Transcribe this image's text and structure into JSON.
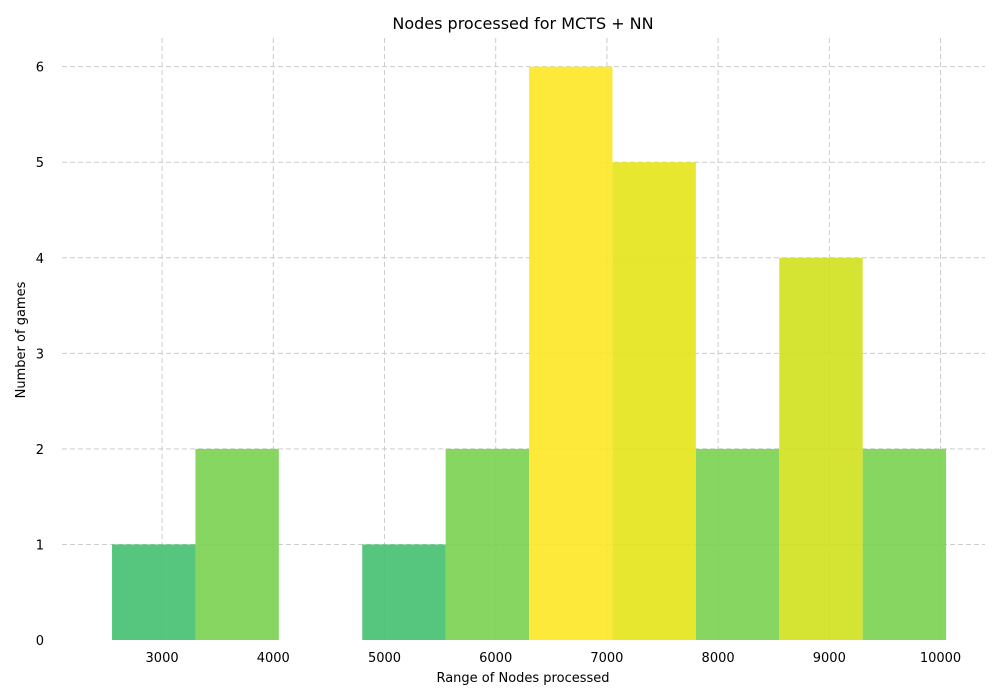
{
  "chart_data": {
    "type": "bar",
    "title": "Nodes processed for MCTS + NN",
    "xlabel": "Range of Nodes processed",
    "ylabel": "Number of games",
    "xlim": [
      2100,
      10400
    ],
    "ylim": [
      0,
      6.3
    ],
    "xticks": [
      3000,
      4000,
      5000,
      6000,
      7000,
      8000,
      9000,
      10000
    ],
    "yticks": [
      0,
      1,
      2,
      3,
      4,
      5,
      6
    ],
    "grid": true,
    "bins": [
      {
        "start": 2550,
        "end": 3300,
        "count": 1,
        "color": "#44bf70"
      },
      {
        "start": 3300,
        "end": 4050,
        "count": 2,
        "color": "#7ad151"
      },
      {
        "start": 4050,
        "end": 4800,
        "count": 0,
        "color": "#2a788e"
      },
      {
        "start": 4800,
        "end": 5550,
        "count": 1,
        "color": "#44bf70"
      },
      {
        "start": 5550,
        "end": 6300,
        "count": 2,
        "color": "#7ad151"
      },
      {
        "start": 6300,
        "end": 7050,
        "count": 6,
        "color": "#fde725"
      },
      {
        "start": 7050,
        "end": 7800,
        "count": 5,
        "color": "#e5e419"
      },
      {
        "start": 7800,
        "end": 8550,
        "count": 2,
        "color": "#7ad151"
      },
      {
        "start": 8550,
        "end": 9300,
        "count": 4,
        "color": "#d0e11c"
      },
      {
        "start": 9300,
        "end": 10050,
        "count": 2,
        "color": "#7ad151"
      }
    ]
  }
}
